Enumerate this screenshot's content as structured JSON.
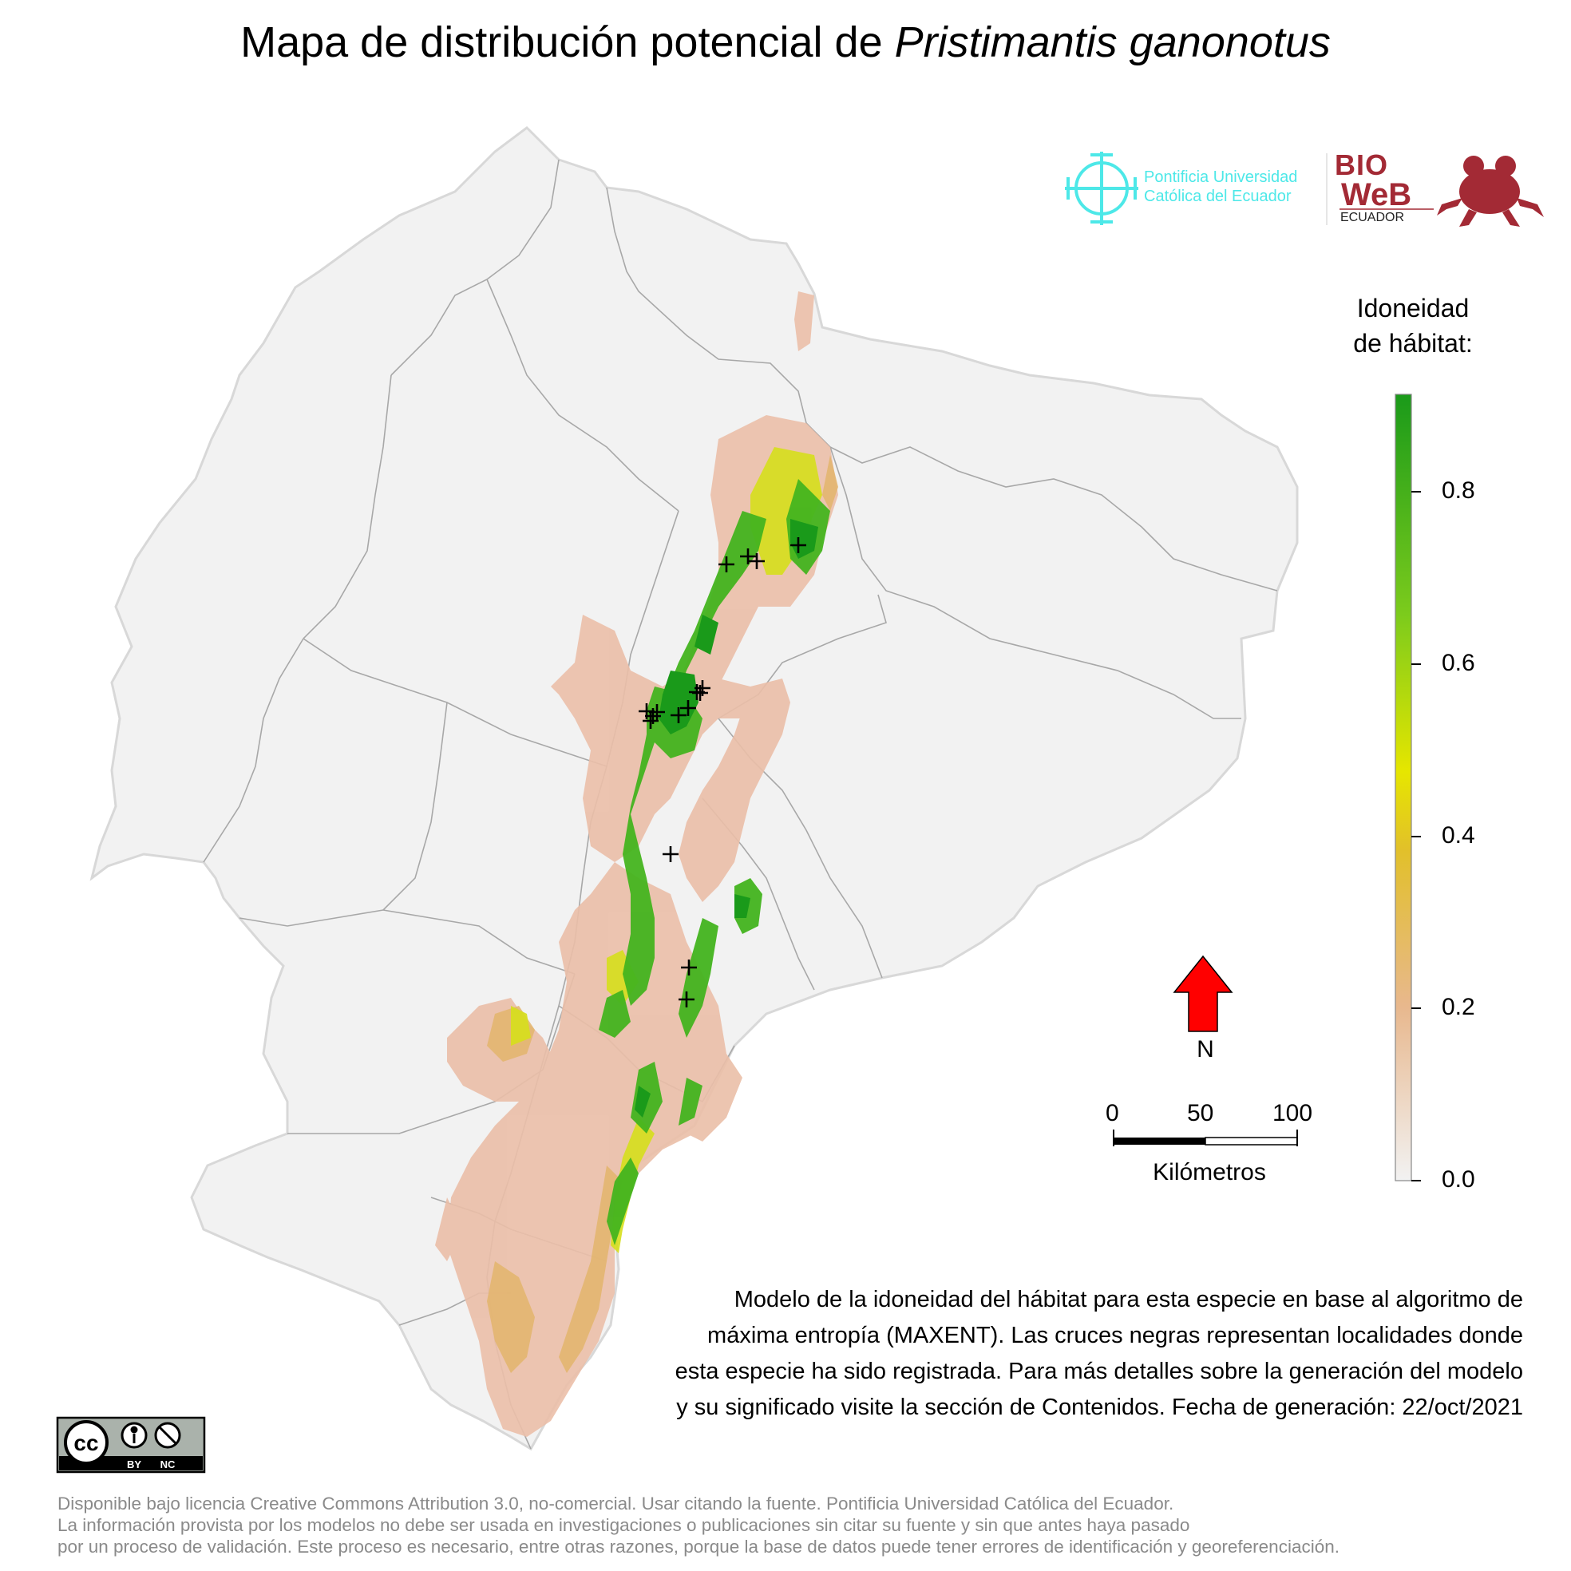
{
  "title": {
    "prefix": "Mapa de distribución potencial de ",
    "species": "Pristimantis ganonotus"
  },
  "logos": {
    "puce_line1": "Pontificia Universidad",
    "puce_line2": "Católica del Ecuador",
    "bioweb_top": "BIO",
    "bioweb_mid": "WeB",
    "bioweb_bottom": "ECUADOR",
    "puce_color": "#4de8e8",
    "bioweb_color": "#a32a35"
  },
  "legend": {
    "title_line1": "Idoneidad",
    "title_line2": "de hábitat:",
    "ticks": [
      "0.8",
      "0.6",
      "0.4",
      "0.2",
      "0.0"
    ],
    "gradient_colors": [
      "#f2f2f2",
      "#e8b88e",
      "#e2c02a",
      "#e6e600",
      "#7ccb1c",
      "#1a9a1a"
    ]
  },
  "north": {
    "label": "N",
    "color": "#ff0000"
  },
  "scale": {
    "labels": [
      "0",
      "50",
      "100"
    ],
    "unit": "Kilómetros"
  },
  "description": {
    "line1": "Modelo de la idoneidad del hábitat para esta especie en base al algoritmo de",
    "line2": "máxima entropía (MAXENT). Las cruces negras representan localidades donde",
    "line3": "esta especie ha sido registrada. Para más detalles sobre la generación del modelo",
    "line4": "y su significado visite la sección de Contenidos. Fecha de generación: 22/oct/2021"
  },
  "license": {
    "badge_cc": "cc",
    "badge_by": "BY",
    "badge_nc": "NC"
  },
  "footer": {
    "line1": "Disponible bajo licencia Creative Commons Attribution 3.0, no-comercial. Usar citando la fuente. Pontificia Universidad Católica del Ecuador.",
    "line2": "La información provista por los modelos no debe ser usada en investigaciones o publicaciones sin citar su fuente y sin que antes haya pasado",
    "line3": "por un proceso de validación. Este proceso es necesario, entre otras razones, porque la base de datos puede tener errores de identificación y georeferenciación."
  }
}
